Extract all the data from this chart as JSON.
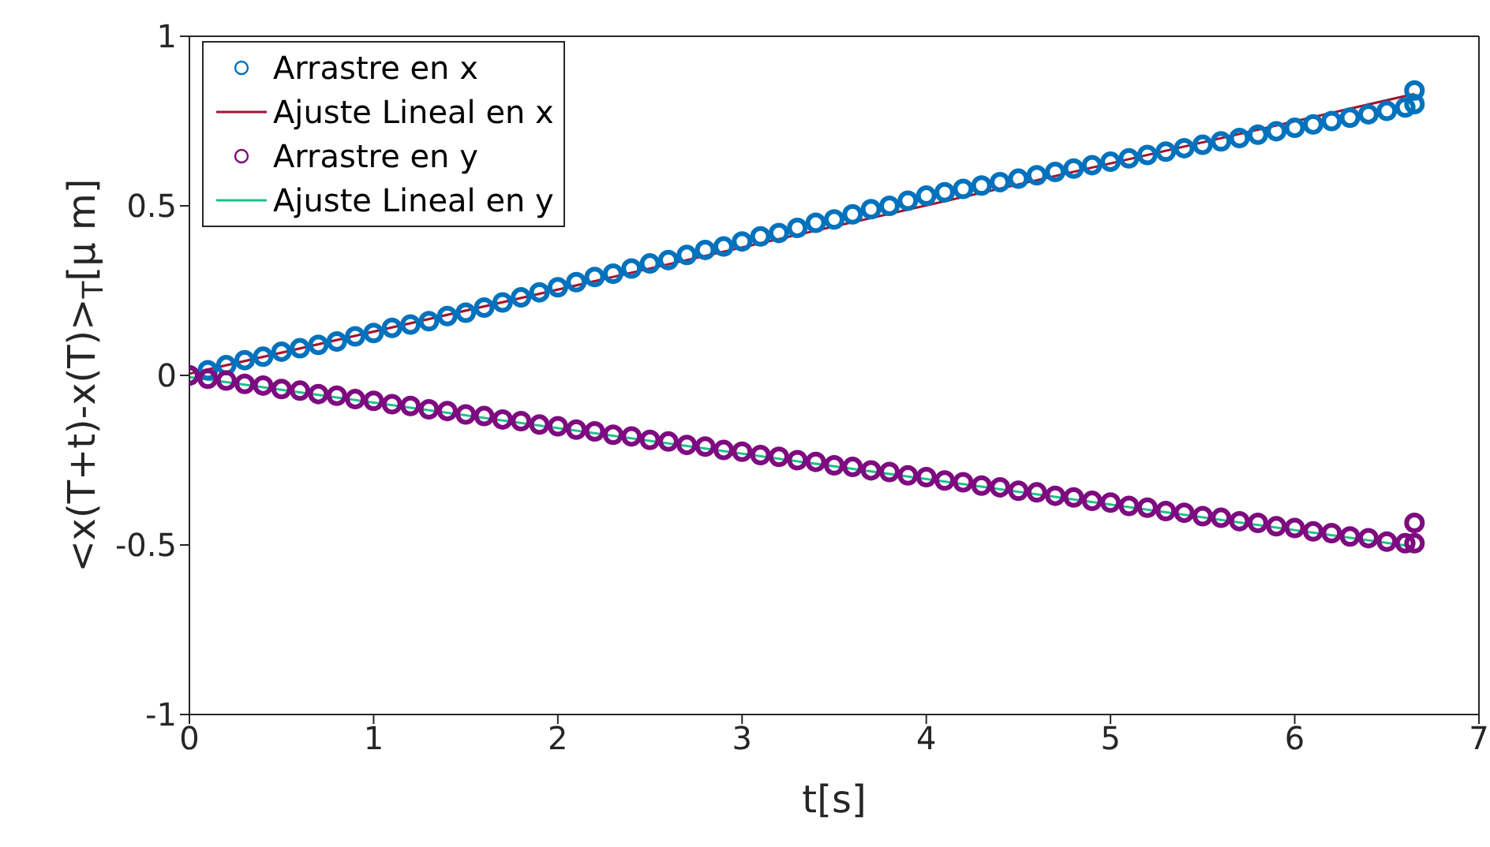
{
  "chart_data": {
    "type": "scatter",
    "xlabel": "t[s]",
    "ylabel": "<x(T+t)-x(T)>$_{T}$[μ m]",
    "xlim": [
      0,
      7
    ],
    "xticks": [
      0,
      1,
      2,
      3,
      4,
      5,
      6,
      7
    ],
    "ylim": [
      -1,
      1
    ],
    "yticks": [
      -1,
      -0.5,
      0,
      0.5,
      1
    ],
    "grid": false,
    "legend": "top left",
    "series": [
      {
        "name": "Arrastre en x",
        "marker": "circle",
        "color": "#0072bd",
        "x": [
          0,
          0.1,
          0.2,
          0.3,
          0.4,
          0.5,
          0.6,
          0.7,
          0.8,
          0.9,
          1.0,
          1.1,
          1.2,
          1.3,
          1.4,
          1.5,
          1.6,
          1.7,
          1.8,
          1.9,
          2.0,
          2.1,
          2.2,
          2.3,
          2.4,
          2.5,
          2.6,
          2.7,
          2.8,
          2.9,
          3.0,
          3.1,
          3.2,
          3.3,
          3.4,
          3.5,
          3.6,
          3.7,
          3.8,
          3.9,
          4.0,
          4.1,
          4.2,
          4.3,
          4.4,
          4.5,
          4.6,
          4.7,
          4.8,
          4.9,
          5.0,
          5.1,
          5.2,
          5.3,
          5.4,
          5.5,
          5.6,
          5.7,
          5.8,
          5.9,
          6.0,
          6.1,
          6.2,
          6.3,
          6.4,
          6.5,
          6.6,
          6.65,
          6.65
        ],
        "values": [
          0,
          0.015,
          0.03,
          0.045,
          0.055,
          0.07,
          0.08,
          0.09,
          0.1,
          0.115,
          0.125,
          0.14,
          0.15,
          0.16,
          0.175,
          0.185,
          0.2,
          0.215,
          0.23,
          0.245,
          0.26,
          0.275,
          0.29,
          0.3,
          0.315,
          0.33,
          0.34,
          0.355,
          0.37,
          0.38,
          0.395,
          0.41,
          0.42,
          0.435,
          0.45,
          0.46,
          0.475,
          0.49,
          0.5,
          0.515,
          0.53,
          0.54,
          0.55,
          0.56,
          0.57,
          0.58,
          0.59,
          0.6,
          0.61,
          0.62,
          0.63,
          0.64,
          0.65,
          0.66,
          0.67,
          0.68,
          0.69,
          0.7,
          0.71,
          0.72,
          0.73,
          0.74,
          0.75,
          0.76,
          0.77,
          0.78,
          0.79,
          0.8,
          0.84
        ]
      },
      {
        "name": "Ajuste Lineal en x",
        "type": "line",
        "marker": "none",
        "color": "#a2142f",
        "x": [
          0,
          6.65
        ],
        "values": [
          0.005,
          0.83
        ]
      },
      {
        "name": "Arrastre en y",
        "marker": "circle",
        "color": "#7e0b80",
        "x": [
          0,
          0.1,
          0.2,
          0.3,
          0.4,
          0.5,
          0.6,
          0.7,
          0.8,
          0.9,
          1.0,
          1.1,
          1.2,
          1.3,
          1.4,
          1.5,
          1.6,
          1.7,
          1.8,
          1.9,
          2.0,
          2.1,
          2.2,
          2.3,
          2.4,
          2.5,
          2.6,
          2.7,
          2.8,
          2.9,
          3.0,
          3.1,
          3.2,
          3.3,
          3.4,
          3.5,
          3.6,
          3.7,
          3.8,
          3.9,
          4.0,
          4.1,
          4.2,
          4.3,
          4.4,
          4.5,
          4.6,
          4.7,
          4.8,
          4.9,
          5.0,
          5.1,
          5.2,
          5.3,
          5.4,
          5.5,
          5.6,
          5.7,
          5.8,
          5.9,
          6.0,
          6.1,
          6.2,
          6.3,
          6.4,
          6.5,
          6.6,
          6.65,
          6.65
        ],
        "values": [
          0,
          -0.01,
          -0.015,
          -0.025,
          -0.03,
          -0.04,
          -0.045,
          -0.055,
          -0.06,
          -0.07,
          -0.075,
          -0.085,
          -0.09,
          -0.1,
          -0.105,
          -0.115,
          -0.12,
          -0.13,
          -0.135,
          -0.145,
          -0.15,
          -0.16,
          -0.165,
          -0.175,
          -0.18,
          -0.19,
          -0.195,
          -0.205,
          -0.21,
          -0.22,
          -0.225,
          -0.235,
          -0.24,
          -0.25,
          -0.255,
          -0.265,
          -0.27,
          -0.28,
          -0.285,
          -0.295,
          -0.3,
          -0.31,
          -0.315,
          -0.325,
          -0.33,
          -0.34,
          -0.345,
          -0.355,
          -0.36,
          -0.37,
          -0.375,
          -0.385,
          -0.39,
          -0.4,
          -0.405,
          -0.415,
          -0.42,
          -0.43,
          -0.435,
          -0.445,
          -0.45,
          -0.46,
          -0.465,
          -0.475,
          -0.48,
          -0.49,
          -0.495,
          -0.495,
          -0.435
        ]
      },
      {
        "name": "Ajuste Lineal en y",
        "type": "line",
        "marker": "none",
        "color": "#1fbf8f",
        "x": [
          0,
          6.65
        ],
        "values": [
          -0.005,
          -0.505
        ]
      }
    ]
  }
}
